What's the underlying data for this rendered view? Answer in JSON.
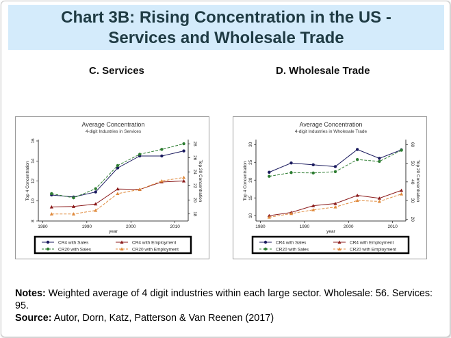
{
  "slide": {
    "title_line1": "Chart 3B: Rising Concentration in the US -",
    "title_line2": "Services and Wholesale Trade",
    "panel_left_heading": "C. Services",
    "panel_right_heading": "D. Wholesale Trade",
    "notes_label": "Notes:",
    "notes_text": " Weighted average of 4 digit industries within each large sector. Wholesale: 56. Services: 95.",
    "source_label": "Source:",
    "source_text": " Autor, Dorn, Katz, Patterson & Van Reenen (2017)"
  },
  "colors": {
    "title_bg": "#d4ebfb",
    "cr4_sales": "#1a1a5e",
    "cr4_emp": "#8b1a1a",
    "cr20_sales": "#2e7d32",
    "cr20_emp": "#e08a3c"
  },
  "chart_data": [
    {
      "type": "line",
      "title": "Average Concentration",
      "subtitle": "4-digit Industries in Services",
      "xlabel": "year",
      "ylabel_left": "Top 4 Concentration",
      "ylabel_right": "Top 20 Concentration",
      "xlim": [
        1979,
        2013
      ],
      "ylim_left": [
        8,
        16
      ],
      "ylim_right": [
        17,
        28.4
      ],
      "xticks": [
        1980,
        1990,
        2000,
        2010
      ],
      "yticks_left": [
        8,
        10,
        12,
        14,
        16
      ],
      "yticks_right": [
        18,
        20,
        22,
        24,
        26,
        28
      ],
      "x": [
        1982,
        1987,
        1992,
        1997,
        2002,
        2007,
        2012
      ],
      "series": [
        {
          "name": "CR4 with Sales",
          "axis": "left",
          "color": "#1a1a5e",
          "marker": "circle",
          "dash": false,
          "values": [
            10.6,
            10.4,
            10.9,
            13.3,
            14.5,
            14.5,
            15.0
          ]
        },
        {
          "name": "CR4 with Employment",
          "axis": "left",
          "color": "#8b1a1a",
          "marker": "triangle",
          "dash": false,
          "values": [
            9.4,
            9.45,
            9.7,
            11.2,
            11.15,
            11.9,
            12.0
          ]
        },
        {
          "name": "CR20 with Sales",
          "axis": "right",
          "color": "#2e7d32",
          "marker": "circle",
          "dash": true,
          "values": [
            20.9,
            20.3,
            21.6,
            24.9,
            26.5,
            27.2,
            28.0
          ]
        },
        {
          "name": "CR20 with Employment",
          "axis": "right",
          "color": "#e08a3c",
          "marker": "triangle",
          "dash": true,
          "values": [
            18.0,
            18.0,
            18.5,
            20.9,
            21.5,
            22.7,
            23.2
          ]
        }
      ],
      "legend_position": "bottom"
    },
    {
      "type": "line",
      "title": "Average Concentration",
      "subtitle": "4-digit Industries in Wholesale Trade",
      "xlabel": "year",
      "ylabel_left": "Top 4 Concentration",
      "ylabel_right": "Top 20 Concentration",
      "xlim": [
        1979,
        2013
      ],
      "ylim_left": [
        8.5,
        31
      ],
      "ylim_right": [
        19,
        62
      ],
      "xticks": [
        1980,
        1990,
        2000,
        2010
      ],
      "yticks_left": [
        10,
        15,
        20,
        25,
        30
      ],
      "yticks_right": [
        20,
        30,
        40,
        50,
        60
      ],
      "x": [
        1982,
        1987,
        1992,
        1997,
        2002,
        2007,
        2012
      ],
      "series": [
        {
          "name": "CR4 with Sales",
          "axis": "left",
          "color": "#1a1a5e",
          "marker": "circle",
          "dash": false,
          "values": [
            22.2,
            24.8,
            24.3,
            23.8,
            28.6,
            26.1,
            28.5
          ]
        },
        {
          "name": "CR4 with Employment",
          "axis": "left",
          "color": "#8b1a1a",
          "marker": "triangle",
          "dash": false,
          "values": [
            10.0,
            10.9,
            12.8,
            13.4,
            15.7,
            14.9,
            17.1
          ]
        },
        {
          "name": "CR20 with Sales",
          "axis": "right",
          "color": "#2e7d32",
          "marker": "circle",
          "dash": true,
          "values": [
            43.0,
            45.0,
            44.8,
            45.5,
            52.0,
            51.0,
            57.0
          ]
        },
        {
          "name": "CR20 with Employment",
          "axis": "right",
          "color": "#e08a3c",
          "marker": "triangle",
          "dash": true,
          "values": [
            21.0,
            23.0,
            25.0,
            26.5,
            30.0,
            29.5,
            33.5
          ]
        }
      ],
      "legend_position": "bottom"
    }
  ]
}
